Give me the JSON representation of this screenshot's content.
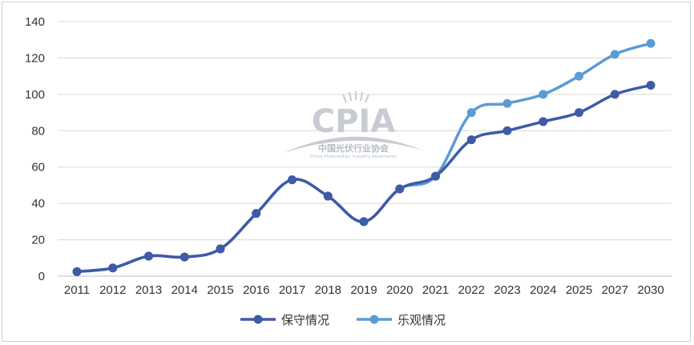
{
  "watermark": {
    "logo": "CPIA",
    "org_cn": "中国光伏行业协会",
    "org_en": "China Photovoltaic Industry Association"
  },
  "chart_data": {
    "type": "line",
    "categories": [
      "2011",
      "2012",
      "2013",
      "2014",
      "2015",
      "2016",
      "2017",
      "2018",
      "2019",
      "2020",
      "2021",
      "2022",
      "2023",
      "2024",
      "2025",
      "2027",
      "2030"
    ],
    "yticks": [
      "0",
      "20",
      "40",
      "60",
      "80",
      "100",
      "120",
      "140"
    ],
    "ylim": [
      0,
      140
    ],
    "grid": "horizontal",
    "legend_position": "bottom-center",
    "series": [
      {
        "name": "保守情况",
        "color": "#3f5aa6",
        "values": [
          2.5,
          4.5,
          11,
          10.5,
          15,
          34.5,
          53,
          44,
          30,
          48,
          55,
          75,
          80,
          85,
          90,
          100,
          105
        ]
      },
      {
        "name": "乐观情况",
        "color": "#5b9bd5",
        "values": [
          2.5,
          4.5,
          11,
          10.5,
          15,
          34.5,
          53,
          44,
          30,
          48,
          55,
          90,
          95,
          100,
          110,
          122,
          128
        ]
      }
    ]
  }
}
